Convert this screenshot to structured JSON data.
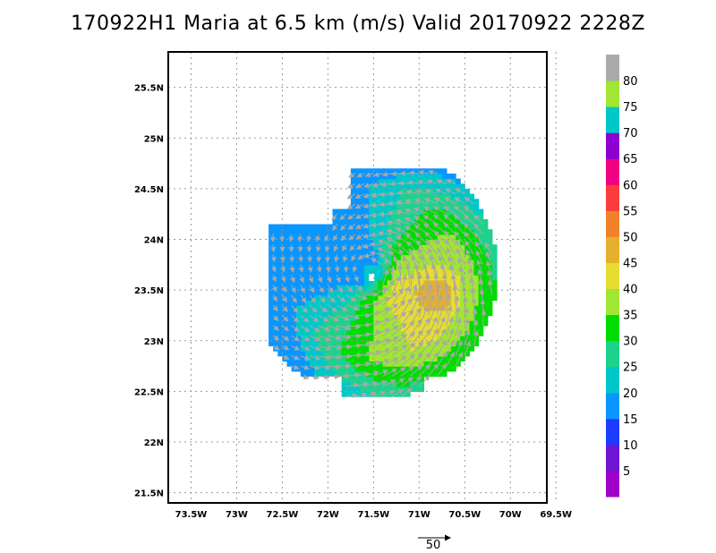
{
  "title": "170922H1 Maria at 6.5 km (m/s) Valid 20170922 2228Z",
  "map": {
    "lon_labels": [
      "73.5W",
      "73W",
      "72.5W",
      "72W",
      "71.5W",
      "71W",
      "70.5W",
      "70W",
      "69.5W"
    ],
    "lat_labels": [
      "25.5N",
      "25N",
      "24.5N",
      "24N",
      "23.5N",
      "23N",
      "22.5N",
      "22N",
      "21.5N"
    ],
    "lon_range": [
      -73.75,
      -69.6
    ],
    "lat_range": [
      21.4,
      25.85
    ],
    "center": {
      "lon": -71.53,
      "lat": 23.65
    }
  },
  "colorbar": {
    "labels": [
      "5",
      "10",
      "15",
      "20",
      "25",
      "30",
      "35",
      "40",
      "45",
      "50",
      "55",
      "60",
      "65",
      "70",
      "75",
      "80"
    ],
    "colors": [
      "#a000c8",
      "#6e14d2",
      "#1e3cff",
      "#0a96ff",
      "#00c8c8",
      "#1ed28c",
      "#00dc00",
      "#a0e632",
      "#e6dc32",
      "#e6af2d",
      "#f08228",
      "#fa3c3c",
      "#f00082",
      "#8c00d2",
      "#00c8c8",
      "#a0e632",
      "#aaaaaa"
    ]
  },
  "reference_vector": {
    "label": "50"
  }
}
